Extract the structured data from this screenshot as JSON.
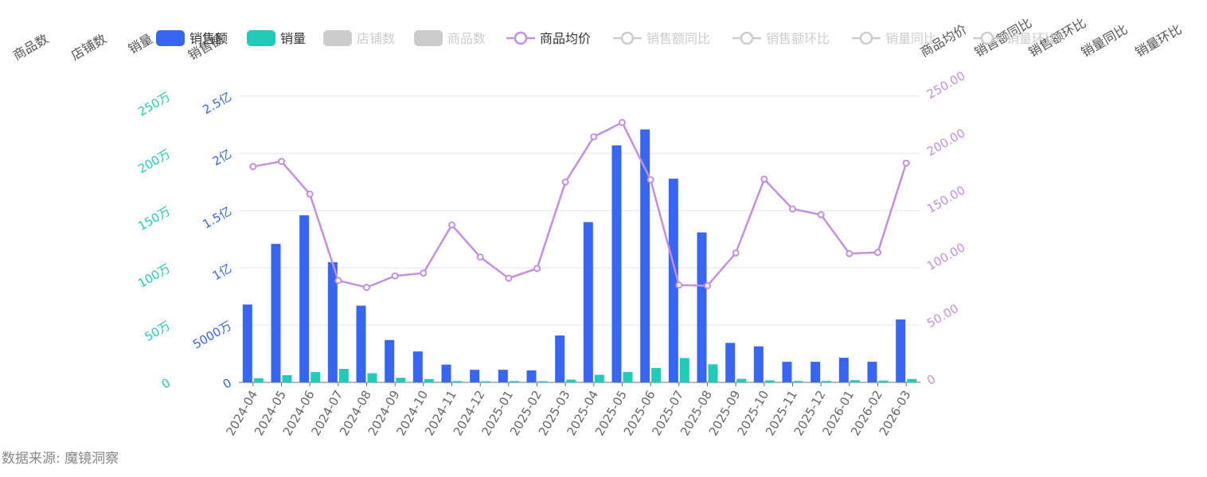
{
  "colors": {
    "sales_amount": "#3865f2",
    "sales_volume": "#22cbb8",
    "avg_price": "#c38fe0",
    "inactive": "#cccccc",
    "grid": "#e3e6f2",
    "axis_text": "#666666"
  },
  "legend": [
    {
      "label": "销售额",
      "icon": "bar",
      "active": true,
      "color_key": "sales_amount"
    },
    {
      "label": "销量",
      "icon": "bar",
      "active": true,
      "color_key": "sales_volume"
    },
    {
      "label": "店铺数",
      "icon": "bar",
      "active": false,
      "color_key": "inactive"
    },
    {
      "label": "商品数",
      "icon": "bar",
      "active": false,
      "color_key": "inactive"
    },
    {
      "label": "商品均价",
      "icon": "line",
      "active": true,
      "color_key": "avg_price"
    },
    {
      "label": "销售额同比",
      "icon": "line",
      "active": false,
      "color_key": "inactive"
    },
    {
      "label": "销售额环比",
      "icon": "line",
      "active": false,
      "color_key": "inactive"
    },
    {
      "label": "销量同比",
      "icon": "line",
      "active": false,
      "color_key": "inactive"
    },
    {
      "label": "销量环比",
      "icon": "line",
      "active": false,
      "color_key": "inactive"
    }
  ],
  "axis_names": {
    "left": [
      "商品数",
      "店铺数",
      "销量",
      "销售额"
    ],
    "right": [
      "商品均价",
      "销售额同比",
      "销售额环比",
      "销量同比",
      "销量环比"
    ]
  },
  "chart_data": {
    "type": "bar",
    "categories": [
      "2024-04",
      "2024-05",
      "2024-06",
      "2024-07",
      "2024-08",
      "2024-09",
      "2024-10",
      "2024-11",
      "2024-12",
      "2025-01",
      "2025-02",
      "2025-03",
      "2025-04",
      "2025-05",
      "2025-06",
      "2025-07",
      "2025-08",
      "2025-09",
      "2025-10",
      "2025-11",
      "2025-12",
      "2026-01",
      "2026-02",
      "2026-03"
    ],
    "series": [
      {
        "name": "销售额",
        "type": "bar",
        "axis": "sales_amount",
        "values": [
          68000000,
          121000000,
          146000000,
          105000000,
          67000000,
          37000000,
          27000000,
          15500000,
          11000000,
          11000000,
          10500000,
          41000000,
          140000000,
          207000000,
          221000000,
          178000000,
          131000000,
          34500000,
          31500000,
          18000000,
          18000000,
          21500000,
          18000000,
          55000000
        ]
      },
      {
        "name": "销量",
        "type": "bar",
        "axis": "sales_volume",
        "values": [
          36500,
          63500,
          90000,
          118500,
          80500,
          40000,
          29000,
          11500,
          10000,
          12000,
          10500,
          24000,
          66500,
          92000,
          126000,
          213000,
          158000,
          31000,
          18000,
          12500,
          13000,
          19500,
          16000,
          29500
        ]
      },
      {
        "name": "商品均价",
        "type": "line",
        "axis": "avg_price",
        "values": [
          188.5,
          193.0,
          164.5,
          89.0,
          83.0,
          93.0,
          95.5,
          137.5,
          109.5,
          91.0,
          99.5,
          175.0,
          214.5,
          227.0,
          177.0,
          85.0,
          84.5,
          113.0,
          177.5,
          151.5,
          146.5,
          112.5,
          113.5,
          191.5
        ]
      }
    ],
    "axes": {
      "sales_amount": {
        "min": 0,
        "max": 250000000,
        "ticks": [
          "0",
          "5000万",
          "1亿",
          "1.5亿",
          "2亿",
          "2.5亿"
        ]
      },
      "sales_volume": {
        "min": 0,
        "max": 2500000,
        "ticks": [
          "0",
          "50万",
          "100万",
          "150万",
          "200万",
          "250万"
        ]
      },
      "avg_price": {
        "min": 0,
        "max": 250,
        "ticks": [
          "0",
          "50.00",
          "100.00",
          "150.00",
          "200.00",
          "250.00"
        ]
      }
    },
    "grid": true
  },
  "source_text": "数据来源: 魔镜洞察"
}
